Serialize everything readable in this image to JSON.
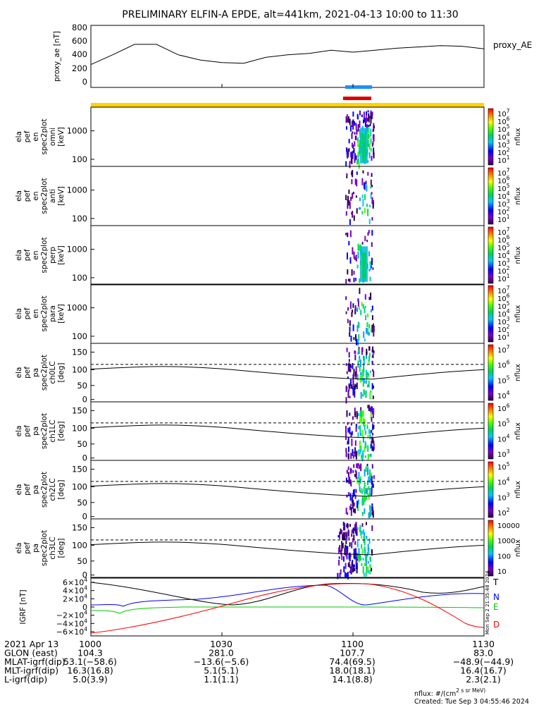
{
  "title": "PRELIMINARY ELFIN-A EPDE, alt=441km, 2021-04-13 10:00 to 11:30",
  "colors": {
    "yellow": "#ffd400",
    "blue_bar": "#1e90ff",
    "red_bar": "#dd0000"
  },
  "chart_data": [
    {
      "type": "line",
      "ylabel": "proxy_ae [nT]",
      "legend": "proxy_AE",
      "yticks": [
        "800",
        "600",
        "400",
        "200",
        "0"
      ],
      "ylim": [
        -100,
        850
      ],
      "x_minutes": [
        0,
        5,
        10,
        15,
        20,
        25,
        30,
        35,
        40,
        45,
        50,
        55,
        60,
        65,
        70,
        75,
        80,
        85,
        90
      ],
      "values": [
        250,
        400,
        560,
        560,
        400,
        320,
        280,
        270,
        360,
        400,
        420,
        470,
        440,
        470,
        500,
        520,
        540,
        530,
        490
      ]
    },
    {
      "type": "heatmap",
      "panels": [
        {
          "ylabel": [
            "ela",
            "pef",
            "en",
            "spec2plot",
            "omni",
            "[keV]"
          ],
          "yticks": [
            "1000",
            "100"
          ]
        },
        {
          "ylabel": [
            "ela",
            "pef",
            "en",
            "spec2plot",
            "anti",
            "[keV]"
          ],
          "yticks": [
            "1000",
            "100"
          ]
        },
        {
          "ylabel": [
            "ela",
            "pef",
            "en",
            "spec2plot",
            "perp",
            "[keV]"
          ],
          "yticks": [
            "1000",
            "100"
          ]
        },
        {
          "ylabel": [
            "ela",
            "pef",
            "en",
            "spec2plot",
            "para",
            "[keV]"
          ],
          "yticks": [
            "1000",
            "100"
          ]
        }
      ],
      "colorbar": {
        "label": "nflux",
        "ticks": [
          "10^7",
          "10^6",
          "10^5",
          "10^4",
          "10^3",
          "10^2",
          "10^1"
        ]
      }
    },
    {
      "type": "heatmap",
      "panels": [
        {
          "ylabel": [
            "ela",
            "pef",
            "pa",
            "spec2plot",
            "ch0LC",
            "[deg]"
          ],
          "yticks": [
            "150",
            "100",
            "50",
            "0"
          ],
          "cb_ticks": [
            "10^7",
            "10^6",
            "10^5",
            "10^4"
          ]
        },
        {
          "ylabel": [
            "ela",
            "pef",
            "pa",
            "spec2plot",
            "ch1LC",
            "[deg]"
          ],
          "yticks": [
            "150",
            "100",
            "50",
            "0"
          ],
          "cb_ticks": [
            "10^6",
            "10^5",
            "10^4",
            "10^3"
          ]
        },
        {
          "ylabel": [
            "ela",
            "pef",
            "pa",
            "spec2plot",
            "ch2LC",
            "[deg]"
          ],
          "yticks": [
            "150",
            "100",
            "50",
            "0"
          ],
          "cb_ticks": [
            "10^5",
            "10^4",
            "10^3",
            "10^2"
          ]
        },
        {
          "ylabel": [
            "ela",
            "pef",
            "pa",
            "spec2plot",
            "ch3LC",
            "[deg]"
          ],
          "yticks": [
            "150",
            "100",
            "50",
            "0"
          ],
          "cb_ticks": [
            "10000",
            "1000",
            "100",
            "10"
          ]
        }
      ],
      "colorbar": {
        "label": "nflux"
      }
    },
    {
      "type": "line",
      "ylabel": "IGRF [nT]",
      "yticks": [
        "6×10^4",
        "4×10^4",
        "2×10^4",
        "0",
        "−2×10^4",
        "−4×10^4",
        "−6×10^4"
      ],
      "legend": [
        "T",
        "N",
        "E",
        "D"
      ],
      "series_colors": [
        "#000000",
        "#0000ff",
        "#00cc00",
        "#ff0000"
      ]
    }
  ],
  "xaxis": {
    "ticks": [
      "1000",
      "1030",
      "1100",
      "1130"
    ],
    "rows": [
      {
        "label": "2021 Apr 13",
        "values": [
          "",
          "",
          "",
          ""
        ]
      },
      {
        "label": "GLON (east)",
        "values": [
          "104.3",
          "281.0",
          "107.7",
          "83.0"
        ]
      },
      {
        "label": "MLAT-igrf(dip)",
        "values": [
          "53.1(−58.6)",
          "−13.6(−5.6)",
          "74.4(69.5)",
          "−48.9(−44.9)"
        ]
      },
      {
        "label": "MLT-igrf(dip)",
        "values": [
          "16.3(16.8)",
          "5.1(5.1)",
          "18.0(18.1)",
          "16.4(16.7)"
        ]
      },
      {
        "label": "L-igrf(dip)",
        "values": [
          "5.0(3.9)",
          "1.1(1.1)",
          "14.1(8.8)",
          "2.3(2.1)"
        ]
      }
    ]
  },
  "footer": {
    "units": "nflux: #/(cm^2 s sr MeV)",
    "created": "Created: Tue Sep  3 04:55:46 2024",
    "side_stamp": "Mon Sep  2 21:35:48 2024"
  }
}
